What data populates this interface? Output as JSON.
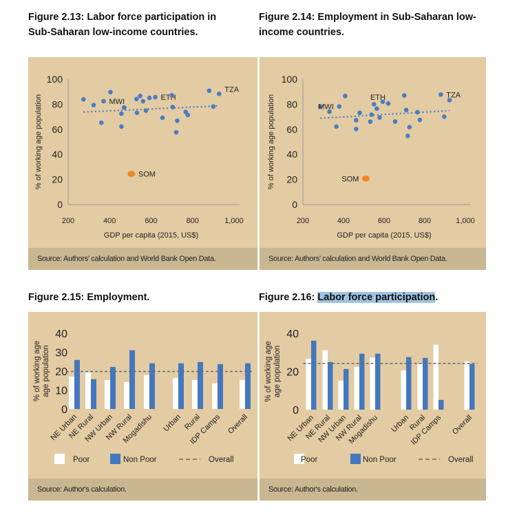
{
  "figures": [
    {
      "title_line1": "Figure 2.13: Labor force participation in",
      "title_line2": "Sub-Saharan low-income countries.",
      "source": "Source: Authors’ calculation and World Bank Open Data."
    },
    {
      "title_line1": "Figure 2.14: Employment in Sub-Saharan low-",
      "title_line2": "income countries.",
      "source": "Source: Authors’ calculation and World Bank Open Data."
    },
    {
      "title_prefix": "Figure 2.15: Employment.",
      "source": "Source: Author's calculation."
    },
    {
      "title_prefix": "Figure 2.16: ",
      "title_highlight": "Labor force participation",
      "title_suffix": ".",
      "source": "Source: Author's calculation."
    }
  ],
  "colors": {
    "panel": "#e3cba3",
    "source_bar": "#c8b791",
    "dot": "#4a7cc2",
    "highlight_dot": "#f08a24",
    "poor": "#ffffff",
    "non_poor": "#4478be",
    "overall_line": "#5a6a80",
    "selection": "#9fc3e0"
  },
  "chart_data": [
    {
      "type": "scatter",
      "xlabel": "GDP per capita (2015, US$)",
      "ylabel": "% of working age population",
      "xlim": [
        200,
        1000
      ],
      "ylim": [
        0,
        100
      ],
      "xticks": [
        "200",
        "400",
        "600",
        "800",
        "1,000"
      ],
      "xtick_values": [
        200,
        400,
        600,
        800,
        1000
      ],
      "yticks": [
        "0",
        "20",
        "40",
        "60",
        "80",
        "100"
      ],
      "ytick_values": [
        0,
        20,
        40,
        60,
        80,
        100
      ],
      "trendline": {
        "x": [
          274,
          928
        ],
        "y": [
          73.8,
          78.7
        ]
      },
      "points": [
        [
          274,
          83.9
        ],
        [
          323,
          79.3
        ],
        [
          371,
          82.4,
          "MWI"
        ],
        [
          360,
          65.3
        ],
        [
          404,
          89.7
        ],
        [
          457,
          72.5
        ],
        [
          457,
          62.2
        ],
        [
          470,
          77.4
        ],
        [
          530,
          84.2
        ],
        [
          532,
          73.2
        ],
        [
          547,
          86.6
        ],
        [
          561,
          82.4
        ],
        [
          575,
          74.9
        ],
        [
          592,
          85
        ],
        [
          620,
          85.7,
          "ETH"
        ],
        [
          655,
          69.2
        ],
        [
          700,
          87.2
        ],
        [
          704,
          77.8
        ],
        [
          721,
          57.6
        ],
        [
          726,
          66.8
        ],
        [
          767,
          73.9
        ],
        [
          777,
          71.4
        ],
        [
          880,
          90.8
        ],
        [
          900,
          78.2
        ],
        [
          928,
          88.3,
          "TZA"
        ]
      ],
      "highlight": {
        "x": 505,
        "y": 24.4,
        "label": "SOM"
      }
    },
    {
      "type": "scatter",
      "xlabel": "GDP per capita (2015, US$)",
      "ylabel": "% of working age population",
      "xlim": [
        200,
        1000
      ],
      "ylim": [
        0,
        100
      ],
      "xticks": [
        "200",
        "400",
        "600",
        "800",
        "1,000"
      ],
      "xtick_values": [
        200,
        400,
        600,
        800,
        1000
      ],
      "yticks": [
        "0",
        "20",
        "40",
        "60",
        "80",
        "100"
      ],
      "ytick_values": [
        0,
        20,
        40,
        60,
        80,
        100
      ],
      "trendline": {
        "x": [
          286,
          922
        ],
        "y": [
          68.8,
          74.9
        ]
      },
      "points": [
        [
          286,
          78.2
        ],
        [
          331,
          74.1
        ],
        [
          379,
          78.2,
          "MWI"
        ],
        [
          365,
          62.2
        ],
        [
          408,
          86.6
        ],
        [
          462,
          67.3
        ],
        [
          462,
          60.2
        ],
        [
          480,
          73.2
        ],
        [
          532,
          66.1
        ],
        [
          538,
          71.7
        ],
        [
          550,
          80
        ],
        [
          564,
          76.5
        ],
        [
          578,
          69.4
        ],
        [
          593,
          82,
          "ETH"
        ],
        [
          620,
          80.6
        ],
        [
          654,
          66.2
        ],
        [
          699,
          87
        ],
        [
          709,
          75.4
        ],
        [
          716,
          54.7
        ],
        [
          725,
          61.7
        ],
        [
          764,
          73.6
        ],
        [
          776,
          67.5
        ],
        [
          879,
          87.7,
          "TZA"
        ],
        [
          896,
          70.1
        ],
        [
          922,
          83.3
        ]
      ],
      "highlight": {
        "x": 510,
        "y": 20.7,
        "label": "SOM"
      }
    },
    {
      "type": "bar",
      "ylabel": "% of working age population",
      "ylim": [
        0,
        40
      ],
      "yticks": [
        "0",
        "10",
        "20",
        "30",
        "40"
      ],
      "ytick_values": [
        0,
        10,
        20,
        30,
        40
      ],
      "categories": [
        "NE Urban",
        "NE Rural",
        "NW Urban",
        "NW Rural",
        "Mogadishu",
        "Urban",
        "Rural",
        "IDP Camps",
        "Overall"
      ],
      "series": [
        {
          "name": "Poor",
          "values": [
            17.1,
            19.3,
            15.3,
            14.2,
            17.9,
            16.4,
            15.3,
            13.5,
            15.3
          ]
        },
        {
          "name": "Non Poor",
          "values": [
            25.9,
            15.7,
            22.2,
            31,
            24.1,
            24.1,
            24.8,
            23.7,
            24.1
          ]
        }
      ],
      "overall": {
        "name": "Overall",
        "value": 19.8
      },
      "legend": "bottom"
    },
    {
      "type": "bar",
      "ylabel": "% of working age population",
      "ylim": [
        0,
        40
      ],
      "yticks": [
        "0",
        "20",
        "40"
      ],
      "ytick_values": [
        0,
        20,
        40
      ],
      "categories": [
        "NE Urban",
        "NE Rural",
        "NW Urban",
        "NW Rural",
        "Mogadishu",
        "Urban",
        "Rural",
        "IDP Camps",
        "Overall"
      ],
      "series": [
        {
          "name": "Poor",
          "values": [
            26.7,
            31.1,
            15.2,
            22.4,
            27.3,
            20.6,
            23.9,
            34,
            25.3
          ]
        },
        {
          "name": "Non Poor",
          "values": [
            36.1,
            24.9,
            21.3,
            29.3,
            29.3,
            27.5,
            27.1,
            5.1,
            23.9
          ]
        }
      ],
      "overall": {
        "name": "Overall",
        "value": 24.2
      },
      "legend": "bottom"
    }
  ]
}
